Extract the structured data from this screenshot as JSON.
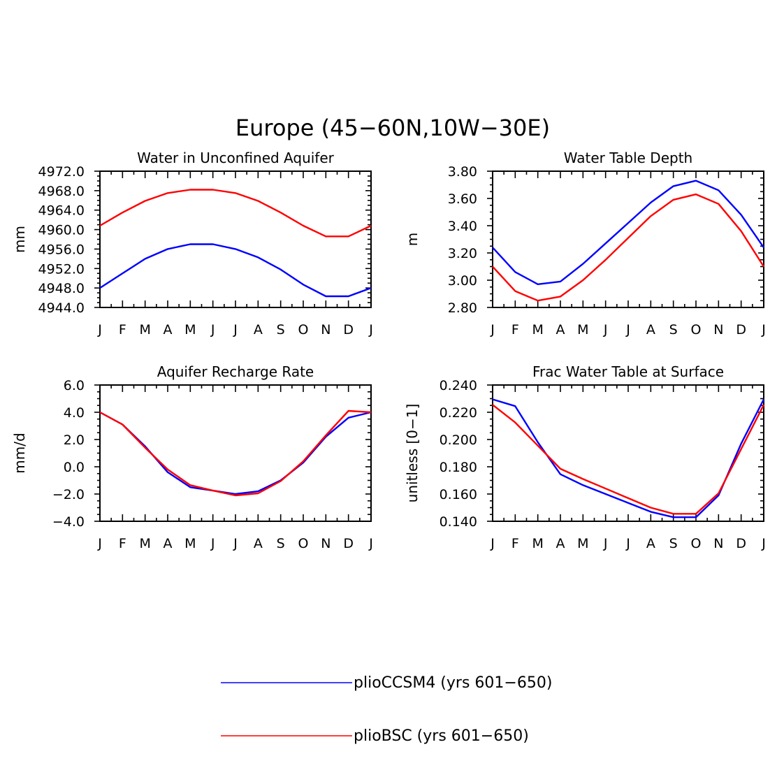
{
  "figure_title": "Europe (45−60N,10W−30E)",
  "legend": [
    {
      "label": "plioCCSM4 (yrs 601−650)",
      "color": "#0000ff"
    },
    {
      "label": "plioBSC (yrs 601−650)",
      "color": "#ff0000"
    }
  ],
  "colors": {
    "blue": "#0000ff",
    "red": "#ff0000"
  },
  "chart_data": [
    {
      "type": "line",
      "title": "Water in Unconfined Aquifer",
      "ylabel": "mm",
      "xlabel": "",
      "categories": [
        "J",
        "F",
        "M",
        "A",
        "M",
        "J",
        "J",
        "A",
        "S",
        "O",
        "N",
        "D",
        "J"
      ],
      "ylim": [
        4944.0,
        4972.0
      ],
      "yticks": [
        4944.0,
        4948.0,
        4952.0,
        4956.0,
        4960.0,
        4964.0,
        4968.0,
        4972.0
      ],
      "ytick_labels": [
        "4944.0",
        "4948.0",
        "4952.0",
        "4956.0",
        "4960.0",
        "4964.0",
        "4968.0",
        "4972.0"
      ],
      "series": [
        {
          "name": "plioCCSM4 (yrs 601−650)",
          "color": "#0000ff",
          "values": [
            4948.0,
            4951.0,
            4954.0,
            4956.0,
            4957.0,
            4957.0,
            4956.0,
            4954.3,
            4951.8,
            4948.7,
            4946.3,
            4946.3,
            4948.0
          ]
        },
        {
          "name": "plioBSC (yrs 601−650)",
          "color": "#ff0000",
          "values": [
            4960.8,
            4963.5,
            4965.9,
            4967.5,
            4968.2,
            4968.2,
            4967.5,
            4965.9,
            4963.5,
            4960.8,
            4958.6,
            4958.6,
            4960.8
          ]
        }
      ]
    },
    {
      "type": "line",
      "title": "Water Table Depth",
      "ylabel": "m",
      "xlabel": "",
      "categories": [
        "J",
        "F",
        "M",
        "A",
        "M",
        "J",
        "J",
        "A",
        "S",
        "O",
        "N",
        "D",
        "J"
      ],
      "ylim": [
        2.8,
        3.8
      ],
      "yticks": [
        2.8,
        3.0,
        3.2,
        3.4,
        3.6,
        3.8
      ],
      "ytick_labels": [
        "2.80",
        "3.00",
        "3.20",
        "3.40",
        "3.60",
        "3.80"
      ],
      "series": [
        {
          "name": "plioCCSM4 (yrs 601−650)",
          "color": "#0000ff",
          "values": [
            3.24,
            3.06,
            2.97,
            2.99,
            3.12,
            3.27,
            3.42,
            3.57,
            3.69,
            3.73,
            3.66,
            3.48,
            3.24
          ]
        },
        {
          "name": "plioBSC (yrs 601−650)",
          "color": "#ff0000",
          "values": [
            3.1,
            2.92,
            2.85,
            2.88,
            3.0,
            3.15,
            3.31,
            3.47,
            3.59,
            3.63,
            3.56,
            3.36,
            3.1
          ]
        }
      ]
    },
    {
      "type": "line",
      "title": "Aquifer Recharge Rate",
      "ylabel": "mm/d",
      "xlabel": "",
      "categories": [
        "J",
        "F",
        "M",
        "A",
        "M",
        "J",
        "J",
        "A",
        "S",
        "O",
        "N",
        "D",
        "J"
      ],
      "ylim": [
        -4.0,
        6.0
      ],
      "yticks": [
        -4.0,
        -2.0,
        0.0,
        2.0,
        4.0,
        6.0
      ],
      "ytick_labels": [
        "−4.0",
        "−2.0",
        "0.0",
        "2.0",
        "4.0",
        "6.0"
      ],
      "series": [
        {
          "name": "plioCCSM4 (yrs 601−650)",
          "color": "#0000ff",
          "values": [
            4.0,
            3.1,
            1.5,
            -0.4,
            -1.5,
            -1.75,
            -2.0,
            -1.8,
            -1.0,
            0.3,
            2.2,
            3.6,
            4.0
          ]
        },
        {
          "name": "plioBSC (yrs 601−650)",
          "color": "#ff0000",
          "values": [
            4.0,
            3.1,
            1.4,
            -0.2,
            -1.35,
            -1.75,
            -2.1,
            -1.95,
            -1.05,
            0.4,
            2.3,
            4.1,
            4.0
          ]
        }
      ]
    },
    {
      "type": "line",
      "title": "Frac Water Table at Surface",
      "ylabel": "unitless [0−1]",
      "xlabel": "",
      "categories": [
        "J",
        "F",
        "M",
        "A",
        "M",
        "J",
        "J",
        "A",
        "S",
        "O",
        "N",
        "D",
        "J"
      ],
      "ylim": [
        0.14,
        0.24
      ],
      "yticks": [
        0.14,
        0.16,
        0.18,
        0.2,
        0.22,
        0.24
      ],
      "ytick_labels": [
        "0.140",
        "0.160",
        "0.180",
        "0.200",
        "0.220",
        "0.240"
      ],
      "series": [
        {
          "name": "plioCCSM4 (yrs 601−650)",
          "color": "#0000ff",
          "values": [
            0.2295,
            0.2245,
            0.198,
            0.1745,
            0.1665,
            0.16,
            0.1535,
            0.147,
            0.143,
            0.143,
            0.159,
            0.197,
            0.2295
          ]
        },
        {
          "name": "plioBSC (yrs 601−650)",
          "color": "#ff0000",
          "values": [
            0.2255,
            0.2125,
            0.1955,
            0.1785,
            0.171,
            0.164,
            0.157,
            0.15,
            0.1455,
            0.1455,
            0.1605,
            0.193,
            0.2255
          ]
        }
      ]
    }
  ]
}
